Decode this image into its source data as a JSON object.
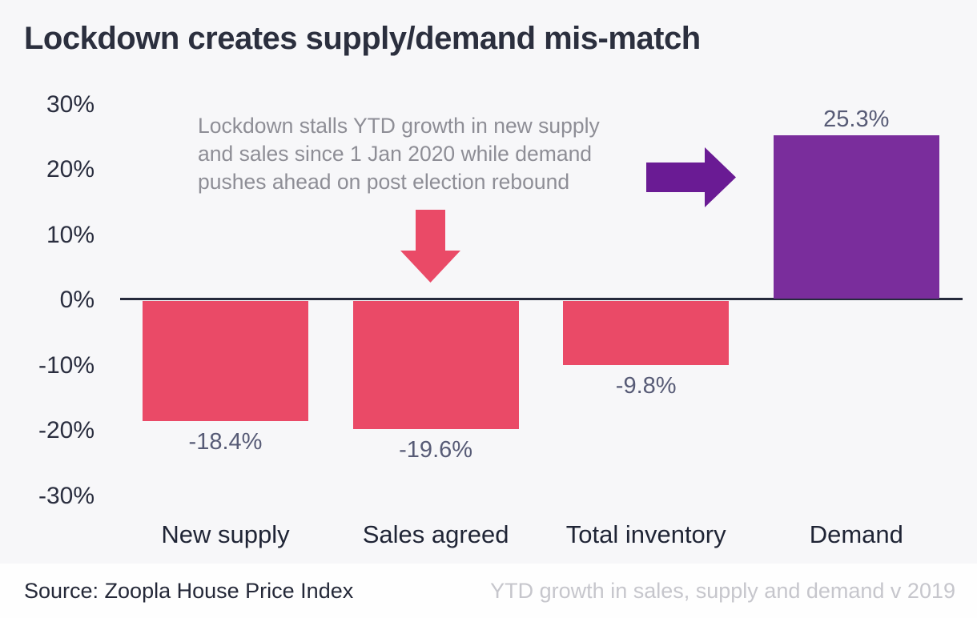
{
  "title": "Lockdown creates supply/demand mis-match",
  "annotation": {
    "text": "Lockdown stalls YTD growth in new supply\nand sales since 1 Jan 2020 while demand\npushes ahead on post election rebound"
  },
  "footer": {
    "source": "Source: Zoopla House Price Index",
    "note": "YTD growth in sales, supply and demand v 2019"
  },
  "colors": {
    "background": "#F7F7F9",
    "footer_background": "#FEFEFE",
    "title_text": "#2B2F3E",
    "annotation_text": "#8E8E96",
    "value_label_text": "#575B76",
    "axis_text": "#2A2E3F",
    "axis_line": "#262A3C",
    "category_text": "#1F2435",
    "negative_bar": "#EA4A67",
    "positive_bar": "#7A2D9C",
    "arrow_down": "#EA4A67",
    "arrow_right": "#6A1B94",
    "source_text": "#242838",
    "footnote_text": "#C6C6CC"
  },
  "chart_data": {
    "type": "bar",
    "title": "Lockdown creates supply/demand mis-match",
    "categories": [
      "New supply",
      "Sales agreed",
      "Total inventory",
      "Demand"
    ],
    "values": [
      -18.4,
      -19.6,
      -9.8,
      25.3
    ],
    "data_labels": [
      "-18.4%",
      "-19.6%",
      "-9.8%",
      "25.3%"
    ],
    "bar_colors": [
      "#EA4A67",
      "#EA4A67",
      "#EA4A67",
      "#7A2D9C"
    ],
    "yticks": [
      {
        "label": "30%",
        "value": 30
      },
      {
        "label": "20%",
        "value": 20
      },
      {
        "label": "10%",
        "value": 10
      },
      {
        "label": "0%",
        "value": 0
      },
      {
        "label": "-10%",
        "value": -10
      },
      {
        "label": "-20%",
        "value": -20
      },
      {
        "label": "-30%",
        "value": -30
      }
    ],
    "ylim": [
      -35,
      32
    ],
    "grid": false,
    "legend": null,
    "xlabel": "",
    "ylabel": ""
  }
}
